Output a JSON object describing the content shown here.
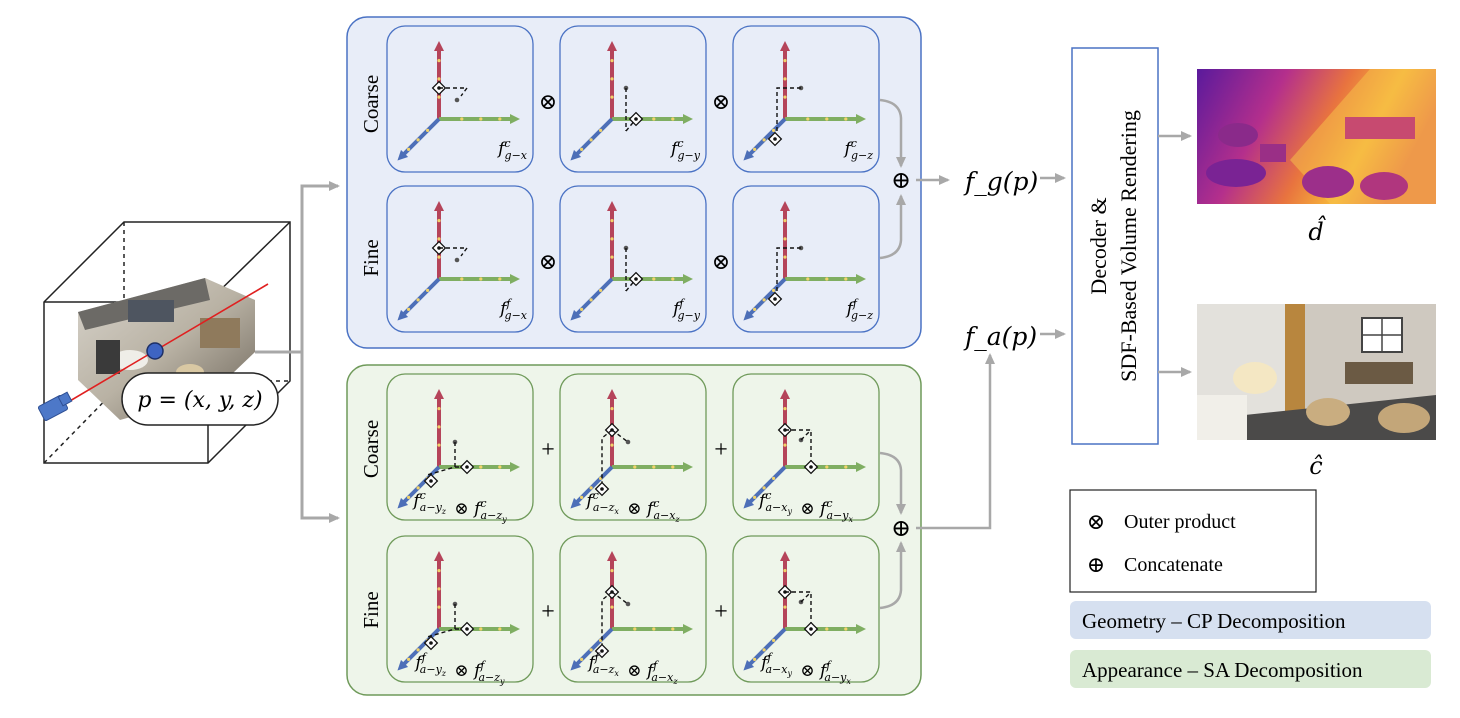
{
  "point_label": "p = (x, y, z)",
  "geometry_group": {
    "rows": [
      {
        "label": "Coarse",
        "cells": [
          "f^c_{g−x}",
          "f^c_{g−y}",
          "f^c_{g−z}"
        ],
        "operators": [
          "⊗",
          "⊗"
        ]
      },
      {
        "label": "Fine",
        "cells": [
          "f^f_{g−x}",
          "f^f_{g−y}",
          "f^f_{g−z}"
        ],
        "operators": [
          "⊗",
          "⊗"
        ]
      }
    ],
    "combine": "⊕",
    "output": "f_g(p)"
  },
  "appearance_group": {
    "rows": [
      {
        "label": "Coarse",
        "cells": [
          "f^c_{a−y_z} ⊗ f^c_{a−z_y}",
          "f^c_{a−z_x} ⊗ f^c_{a−x_z}",
          "f^c_{a−x_y} ⊗ f^c_{a−y_x}"
        ],
        "operators": [
          "+",
          "+"
        ]
      },
      {
        "label": "Fine",
        "cells": [
          "f^f_{a−y_z} ⊗ f^f_{a−z_y}",
          "f^f_{a−z_x} ⊗ f^f_{a−x_z}",
          "f^f_{a−x_y} ⊗ f^f_{a−y_x}"
        ],
        "operators": [
          "+",
          "+"
        ]
      }
    ],
    "combine": "⊕",
    "output": "f_a(p)"
  },
  "renderer": {
    "line1": "Decoder &",
    "line2": "SDF-Based Volume Rendering"
  },
  "outputs": {
    "depth": "d̂",
    "color": "ĉ"
  },
  "legend": [
    {
      "symbol": "⊗",
      "text": "Outer product"
    },
    {
      "symbol": "⊕",
      "text": "Concatenate"
    }
  ],
  "tags": {
    "geometry": "Geometry – CP Decomposition",
    "appearance": "Appearance – SA Decomposition"
  },
  "colors": {
    "geometry_bg": "#e8edf8",
    "geometry_border": "#4a72c4",
    "appearance_bg": "#eef5ea",
    "appearance_border": "#6f9a5a",
    "axis_red": "#b5445a",
    "axis_green": "#7fae62",
    "axis_blue": "#4d6fb8",
    "arrow_gray": "#a8a8a8",
    "renderer_border": "#4a72c4",
    "tag_geometry": "#d6e0f0",
    "tag_appearance": "#d9ead3"
  }
}
